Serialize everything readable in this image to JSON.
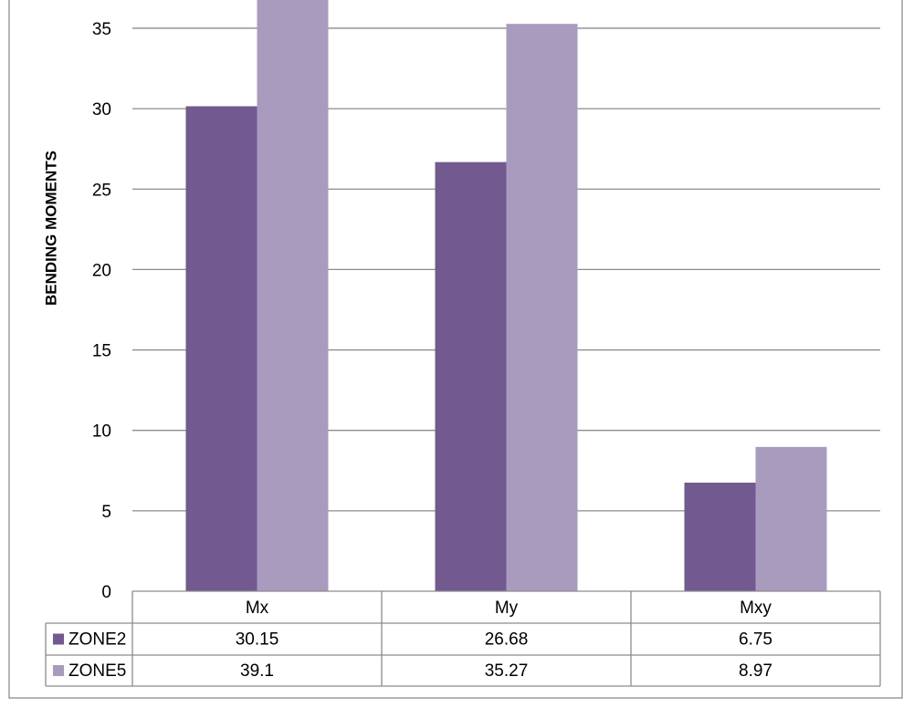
{
  "chart_data": {
    "type": "bar",
    "y_label": "BENDING MOMENTS",
    "categories": [
      "Mx",
      "My",
      "Mxy"
    ],
    "series": [
      {
        "name": "ZONE2",
        "color": "#725990",
        "values": [
          30.15,
          26.68,
          6.75
        ]
      },
      {
        "name": "ZONE5",
        "color": "#a99bbd",
        "values": [
          39.1,
          35.27,
          8.97
        ]
      }
    ],
    "ylim": [
      0,
      40
    ],
    "yticks": [
      0,
      5,
      10,
      15,
      20,
      25,
      30,
      35
    ],
    "grid": true,
    "data_table": true
  }
}
